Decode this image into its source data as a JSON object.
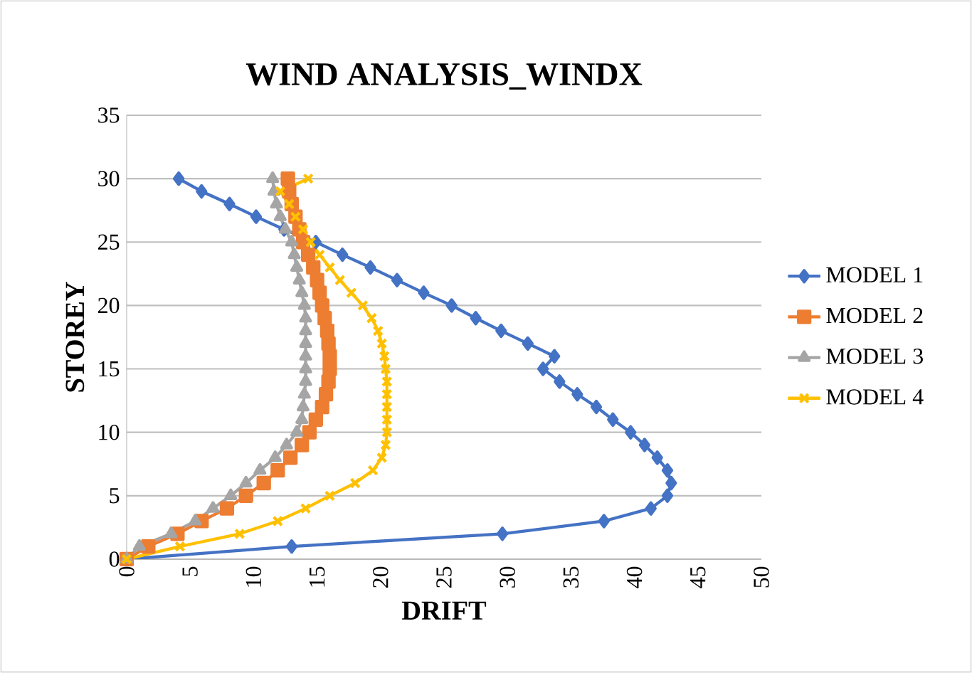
{
  "chart_data": {
    "type": "line",
    "title": "WIND ANALYSIS_WINDX",
    "xlabel": "DRIFT",
    "ylabel": "STOREY",
    "xlim": [
      0,
      50
    ],
    "xticks": [
      0,
      5,
      10,
      15,
      20,
      25,
      30,
      35,
      40,
      45,
      50
    ],
    "ylim": [
      0,
      35
    ],
    "yticks": [
      0,
      5,
      10,
      15,
      20,
      25,
      30,
      35
    ],
    "grid": "y",
    "legend": "right",
    "series": [
      {
        "name": "MODEL 1",
        "color": "#4472c4",
        "marker": "diamond",
        "x": [
          0,
          13.0,
          29.6,
          37.6,
          41.3,
          42.6,
          42.9,
          42.6,
          41.8,
          40.8,
          39.7,
          38.3,
          37.0,
          35.5,
          34.1,
          32.8,
          33.7,
          31.6,
          29.5,
          27.5,
          25.6,
          23.4,
          21.3,
          19.2,
          17.0,
          14.9,
          12.4,
          10.2,
          8.1,
          5.9,
          4.1
        ],
        "values": [
          0,
          1,
          2,
          3,
          4,
          5,
          6,
          7,
          8,
          9,
          10,
          11,
          12,
          13,
          14,
          15,
          16,
          17,
          18,
          19,
          20,
          21,
          22,
          23,
          24,
          25,
          26,
          27,
          28,
          29,
          30
        ]
      },
      {
        "name": "MODEL 2",
        "color": "#ed7d31",
        "marker": "square",
        "x": [
          0,
          1.7,
          4.0,
          5.9,
          7.9,
          9.4,
          10.8,
          11.9,
          12.9,
          13.8,
          14.4,
          14.9,
          15.4,
          15.7,
          15.9,
          16.0,
          16.0,
          15.9,
          15.8,
          15.6,
          15.4,
          15.2,
          15.0,
          14.7,
          14.3,
          13.9,
          13.6,
          13.3,
          13.0,
          12.8,
          12.7
        ],
        "values": [
          0,
          1,
          2,
          3,
          4,
          5,
          6,
          7,
          8,
          9,
          10,
          11,
          12,
          13,
          14,
          15,
          16,
          17,
          18,
          19,
          20,
          21,
          22,
          23,
          24,
          25,
          26,
          27,
          28,
          29,
          30
        ]
      },
      {
        "name": "MODEL 3",
        "color": "#a5a5a5",
        "marker": "triangle",
        "x": [
          0,
          1.0,
          3.5,
          5.4,
          6.8,
          8.2,
          9.4,
          10.5,
          11.7,
          12.6,
          13.4,
          13.8,
          13.9,
          14.0,
          14.1,
          14.1,
          14.1,
          14.1,
          14.1,
          14.1,
          14.0,
          13.8,
          13.6,
          13.4,
          13.2,
          13.0,
          12.5,
          12.1,
          11.8,
          11.6,
          11.5
        ],
        "values": [
          0,
          1,
          2,
          3,
          4,
          5,
          6,
          7,
          8,
          9,
          10,
          11,
          12,
          13,
          14,
          15,
          16,
          17,
          18,
          19,
          20,
          21,
          22,
          23,
          24,
          25,
          26,
          27,
          28,
          29,
          30
        ]
      },
      {
        "name": "MODEL 4",
        "color": "#ffc000",
        "marker": "cross",
        "x": [
          0,
          4.2,
          8.9,
          11.9,
          14.1,
          16.0,
          18.0,
          19.4,
          20.1,
          20.4,
          20.5,
          20.5,
          20.5,
          20.5,
          20.5,
          20.4,
          20.3,
          20.1,
          19.8,
          19.3,
          18.6,
          17.7,
          16.8,
          16.0,
          15.2,
          14.5,
          13.9,
          13.3,
          12.8,
          12.1,
          14.3
        ],
        "values": [
          0,
          1,
          2,
          3,
          4,
          5,
          6,
          7,
          8,
          9,
          10,
          11,
          12,
          13,
          14,
          15,
          16,
          17,
          18,
          19,
          20,
          21,
          22,
          23,
          24,
          25,
          26,
          27,
          28,
          29,
          30
        ]
      }
    ]
  }
}
